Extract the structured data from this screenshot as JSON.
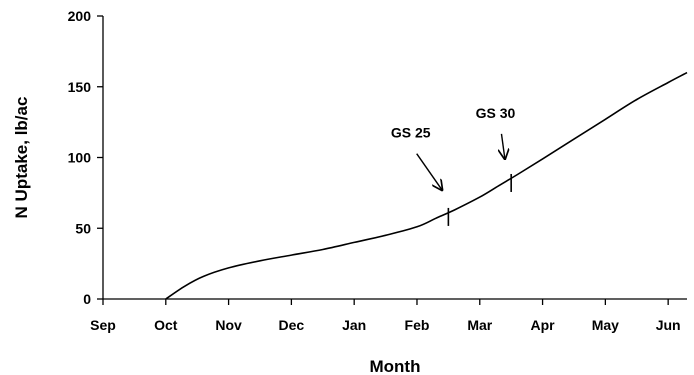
{
  "chart_data": {
    "type": "line",
    "title": "",
    "xlabel": "Month",
    "ylabel": "N Uptake, lb/ac",
    "categories": [
      "Sep",
      "Oct",
      "Nov",
      "Dec",
      "Jan",
      "Feb",
      "Mar",
      "Apr",
      "May",
      "Jun"
    ],
    "xlim": [
      0,
      9.3
    ],
    "ylim": [
      0,
      200
    ],
    "yticks": [
      0,
      50,
      100,
      150,
      200
    ],
    "grid": false,
    "legend": "none",
    "line_color": "#000000",
    "series": [
      {
        "x": [
          1.0,
          1.3,
          1.6,
          2.0,
          2.5,
          3.0,
          3.5,
          4.0,
          4.5,
          5.0,
          5.3,
          5.6,
          6.0,
          6.3,
          6.6,
          7.0,
          7.5,
          8.0,
          8.5,
          9.0,
          9.3
        ],
        "values": [
          0,
          9,
          16,
          22,
          27,
          31,
          35,
          40,
          45,
          51,
          57,
          63,
          72,
          80,
          88,
          99,
          113,
          127,
          141,
          153,
          160
        ]
      }
    ],
    "stage_marks": [
      {
        "x": 5.5,
        "y": 58
      },
      {
        "x": 6.5,
        "y": 82
      }
    ],
    "annotations": [
      {
        "text": "GS 25",
        "x": 4.9,
        "y": 114,
        "arrow_to": [
          5.4,
          77
        ]
      },
      {
        "text": "GS 30",
        "x": 6.25,
        "y": 128,
        "arrow_to": [
          6.4,
          99
        ]
      }
    ]
  }
}
